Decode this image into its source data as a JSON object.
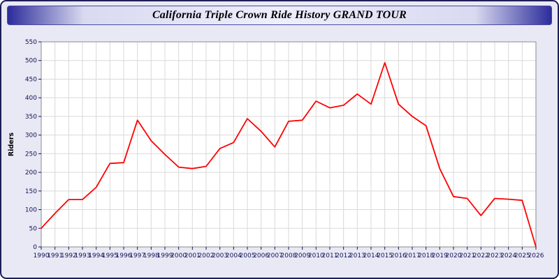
{
  "title": "California Triple Crown Ride History GRAND TOUR",
  "colors": {
    "page_background": "#e9e9f5",
    "frame_border": "#1e1e5a",
    "title_bar_edge": "#2c2c9c",
    "plot_background": "#ffffff",
    "gridline": "#d9d9d9",
    "plot_border": "#8a8a8a",
    "axis_text": "#121258",
    "line": "#ff0000"
  },
  "chart_data": {
    "type": "line",
    "title": "California Triple Crown Ride History GRAND TOUR",
    "xlabel": "",
    "ylabel": "Riders",
    "ylim": [
      0,
      550
    ],
    "y_ticks": [
      0,
      50,
      100,
      150,
      200,
      250,
      300,
      350,
      400,
      450,
      500,
      550
    ],
    "grid": true,
    "legend_position": "none",
    "categories": [
      "1990",
      "1991",
      "1992",
      "1993",
      "1994",
      "1995",
      "1996",
      "1997",
      "1998",
      "1999",
      "2000",
      "2001",
      "2002",
      "2003",
      "2004",
      "2005",
      "2006",
      "2007",
      "2008",
      "2009",
      "2010",
      "2011",
      "2012",
      "2013",
      "2014",
      "2015",
      "2016",
      "2017",
      "2018",
      "2019",
      "2020",
      "2021",
      "2022",
      "2023",
      "2024",
      "2025",
      "2026"
    ],
    "series": [
      {
        "name": "Riders",
        "color": "#ff0000",
        "values": [
          50,
          90,
          127,
          127,
          160,
          224,
          226,
          340,
          285,
          248,
          214,
          210,
          216,
          264,
          280,
          344,
          310,
          268,
          337,
          340,
          391,
          373,
          380,
          410,
          383,
          494,
          383,
          350,
          325,
          210,
          135,
          130,
          84,
          130,
          128,
          125,
          0
        ]
      }
    ]
  }
}
